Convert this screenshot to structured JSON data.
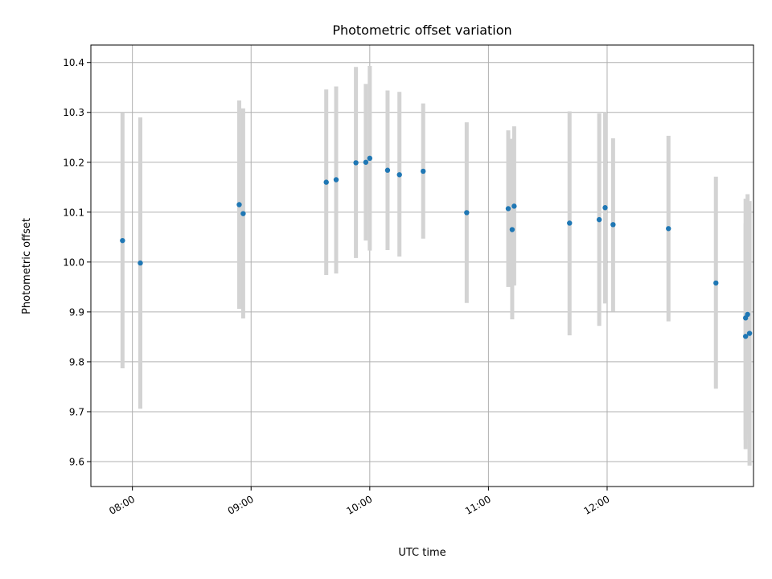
{
  "chart_data": {
    "type": "scatter",
    "title": "Photometric offset variation",
    "xlabel": "UTC time",
    "ylabel": "Photometric offset",
    "xlim": [
      "07:39",
      "13:14"
    ],
    "ylim": [
      9.55,
      10.435
    ],
    "x_ticks": [
      "08:00",
      "09:00",
      "10:00",
      "11:00",
      "12:00"
    ],
    "y_ticks": [
      9.6,
      9.7,
      9.8,
      9.9,
      10.0,
      10.1,
      10.2,
      10.3,
      10.4
    ],
    "grid": true,
    "point_color": "#1f77b4",
    "errorbar_color": "#d3d3d3",
    "points": [
      {
        "x": "07:55",
        "y": 10.043,
        "lo": 9.787,
        "hi": 10.3
      },
      {
        "x": "08:04",
        "y": 9.998,
        "lo": 9.706,
        "hi": 10.29
      },
      {
        "x": "08:54",
        "y": 10.115,
        "lo": 9.906,
        "hi": 10.324
      },
      {
        "x": "08:56",
        "y": 10.097,
        "lo": 9.887,
        "hi": 10.308
      },
      {
        "x": "09:38",
        "y": 10.16,
        "lo": 9.974,
        "hi": 10.346
      },
      {
        "x": "09:43",
        "y": 10.165,
        "lo": 9.977,
        "hi": 10.352
      },
      {
        "x": "09:53",
        "y": 10.199,
        "lo": 10.008,
        "hi": 10.391
      },
      {
        "x": "09:58",
        "y": 10.2,
        "lo": 10.043,
        "hi": 10.357
      },
      {
        "x": "10:00",
        "y": 10.208,
        "lo": 10.023,
        "hi": 10.393
      },
      {
        "x": "10:09",
        "y": 10.184,
        "lo": 10.024,
        "hi": 10.344
      },
      {
        "x": "10:15",
        "y": 10.175,
        "lo": 10.011,
        "hi": 10.341
      },
      {
        "x": "10:27",
        "y": 10.182,
        "lo": 10.047,
        "hi": 10.318
      },
      {
        "x": "10:49",
        "y": 10.099,
        "lo": 9.918,
        "hi": 10.28
      },
      {
        "x": "11:10",
        "y": 10.107,
        "lo": 9.95,
        "hi": 10.264
      },
      {
        "x": "11:12",
        "y": 10.065,
        "lo": 9.885,
        "hi": 10.247
      },
      {
        "x": "11:13",
        "y": 10.112,
        "lo": 9.953,
        "hi": 10.272
      },
      {
        "x": "11:41",
        "y": 10.078,
        "lo": 9.853,
        "hi": 10.302
      },
      {
        "x": "11:56",
        "y": 10.085,
        "lo": 9.872,
        "hi": 10.298
      },
      {
        "x": "11:59",
        "y": 10.109,
        "lo": 9.917,
        "hi": 10.301
      },
      {
        "x": "12:03",
        "y": 10.075,
        "lo": 9.901,
        "hi": 10.248
      },
      {
        "x": "12:31",
        "y": 10.067,
        "lo": 9.881,
        "hi": 10.253
      },
      {
        "x": "12:55",
        "y": 9.958,
        "lo": 9.746,
        "hi": 10.171
      },
      {
        "x": "13:10",
        "y": 9.851,
        "lo": 9.625,
        "hi": 10.078
      },
      {
        "x": "13:10",
        "y": 9.888,
        "lo": 9.644,
        "hi": 10.127
      },
      {
        "x": "13:11",
        "y": 9.895,
        "lo": 9.655,
        "hi": 10.136
      },
      {
        "x": "13:12",
        "y": 9.857,
        "lo": 9.592,
        "hi": 10.122
      }
    ]
  }
}
